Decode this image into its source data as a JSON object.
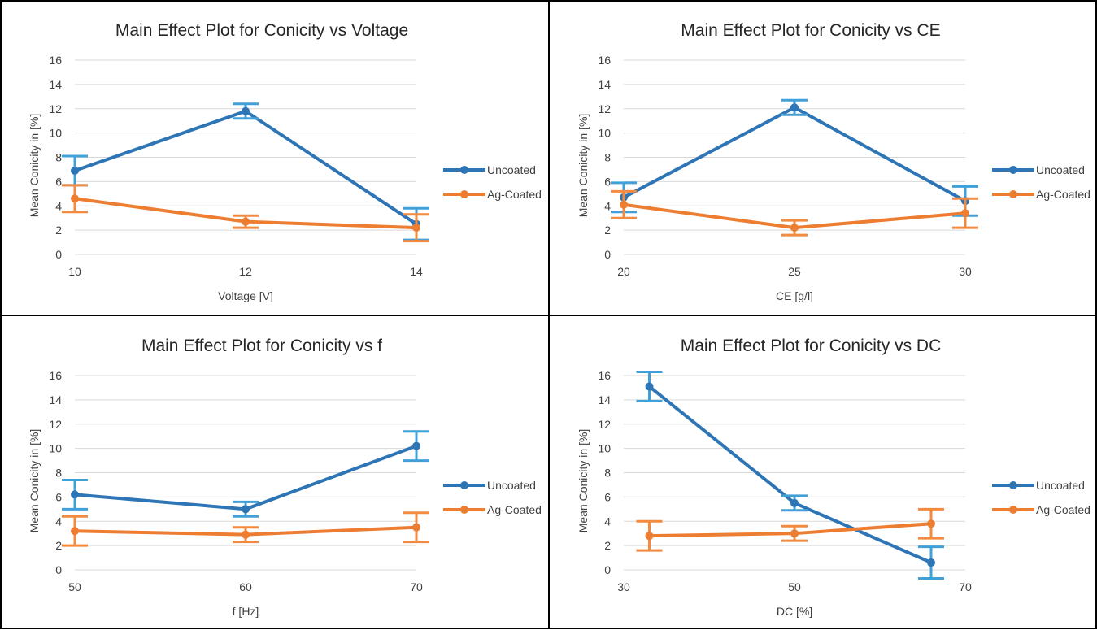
{
  "colors": {
    "uncoated": "#2e75b6",
    "ag_coated": "#ed7d31",
    "grid": "#d9d9d9",
    "border": "#000000",
    "text": "#404040",
    "title": "#262626"
  },
  "chart_data": [
    {
      "type": "line",
      "title": "Main Effect Plot for Conicity vs Voltage",
      "xlabel": "Voltage [V]",
      "ylabel": "Mean Conicity in [%]",
      "x_ticks": [
        "10",
        "12",
        "14"
      ],
      "x_range": [
        10,
        14
      ],
      "ylim": [
        0,
        16
      ],
      "y_ticks": [
        "0",
        "2",
        "4",
        "6",
        "8",
        "10",
        "12",
        "14",
        "16"
      ],
      "grid": true,
      "legend": "right",
      "series": [
        {
          "name": "Uncoated",
          "x": [
            10,
            12,
            14
          ],
          "values": [
            6.9,
            11.8,
            2.5
          ],
          "err": [
            1.2,
            0.6,
            1.3
          ]
        },
        {
          "name": "Ag-Coated",
          "x": [
            10,
            12,
            14
          ],
          "values": [
            4.6,
            2.7,
            2.2
          ],
          "err": [
            1.1,
            0.5,
            1.1
          ]
        }
      ]
    },
    {
      "type": "line",
      "title": "Main Effect Plot for Conicity vs CE",
      "xlabel": "CE [g/l]",
      "ylabel": "Mean Conicity in [%]",
      "x_ticks": [
        "20",
        "25",
        "30"
      ],
      "x_range": [
        20,
        30
      ],
      "ylim": [
        0,
        16
      ],
      "y_ticks": [
        "0",
        "2",
        "4",
        "6",
        "8",
        "10",
        "12",
        "14",
        "16"
      ],
      "grid": true,
      "legend": "right",
      "series": [
        {
          "name": "Uncoated",
          "x": [
            20,
            25,
            30
          ],
          "values": [
            4.7,
            12.1,
            4.4
          ],
          "err": [
            1.2,
            0.6,
            1.2
          ]
        },
        {
          "name": "Ag-Coated",
          "x": [
            20,
            25,
            30
          ],
          "values": [
            4.1,
            2.2,
            3.4
          ],
          "err": [
            1.1,
            0.6,
            1.2
          ]
        }
      ]
    },
    {
      "type": "line",
      "title": "Main Effect Plot for Conicity vs f",
      "xlabel": "f [Hz]",
      "ylabel": "Mean Conicity in [%]",
      "x_ticks": [
        "50",
        "60",
        "70"
      ],
      "x_range": [
        50,
        70
      ],
      "ylim": [
        0,
        16
      ],
      "y_ticks": [
        "0",
        "2",
        "4",
        "6",
        "8",
        "10",
        "12",
        "14",
        "16"
      ],
      "grid": true,
      "legend": "right",
      "series": [
        {
          "name": "Uncoated",
          "x": [
            50,
            60,
            70
          ],
          "values": [
            6.2,
            5.0,
            10.2
          ],
          "err": [
            1.2,
            0.6,
            1.2
          ]
        },
        {
          "name": "Ag-Coated",
          "x": [
            50,
            60,
            70
          ],
          "values": [
            3.2,
            2.9,
            3.5
          ],
          "err": [
            1.2,
            0.6,
            1.2
          ]
        }
      ]
    },
    {
      "type": "line",
      "title": "Main Effect Plot for Conicity vs DC",
      "xlabel": "DC [%]",
      "ylabel": "Mean Conicity in [%]",
      "x_ticks": [
        "30",
        "50",
        "70"
      ],
      "x_range": [
        30,
        70
      ],
      "ylim": [
        0,
        16
      ],
      "y_ticks": [
        "0",
        "2",
        "4",
        "6",
        "8",
        "10",
        "12",
        "14",
        "16"
      ],
      "grid": true,
      "legend": "right",
      "series": [
        {
          "name": "Uncoated",
          "x": [
            33,
            50,
            66
          ],
          "values": [
            15.1,
            5.5,
            0.6
          ],
          "err": [
            1.2,
            0.6,
            1.3
          ]
        },
        {
          "name": "Ag-Coated",
          "x": [
            33,
            50,
            66
          ],
          "values": [
            2.8,
            3.0,
            3.8
          ],
          "err": [
            1.2,
            0.6,
            1.2
          ]
        }
      ]
    }
  ]
}
